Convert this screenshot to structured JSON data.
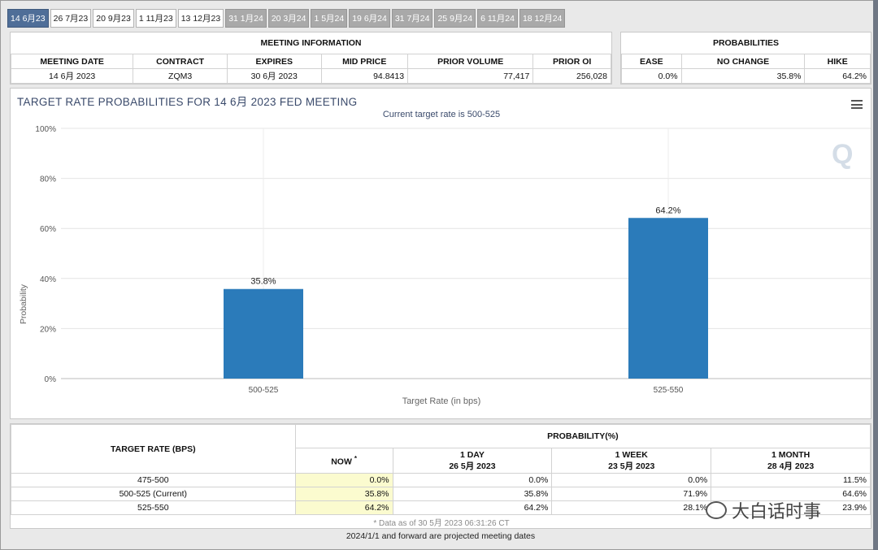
{
  "tabs": [
    {
      "label": "14 6月23",
      "state": "active"
    },
    {
      "label": "26 7月23",
      "state": "normal"
    },
    {
      "label": "20 9月23",
      "state": "normal"
    },
    {
      "label": "1 11月23",
      "state": "normal"
    },
    {
      "label": "13 12月23",
      "state": "normal"
    },
    {
      "label": "31 1月24",
      "state": "grey"
    },
    {
      "label": "20 3月24",
      "state": "grey"
    },
    {
      "label": "1 5月24",
      "state": "grey"
    },
    {
      "label": "19 6月24",
      "state": "grey"
    },
    {
      "label": "31 7月24",
      "state": "grey"
    },
    {
      "label": "25 9月24",
      "state": "grey"
    },
    {
      "label": "6 11月24",
      "state": "grey"
    },
    {
      "label": "18 12月24",
      "state": "grey"
    }
  ],
  "meeting": {
    "title": "MEETING INFORMATION",
    "headers": [
      "MEETING DATE",
      "CONTRACT",
      "EXPIRES",
      "MID PRICE",
      "PRIOR VOLUME",
      "PRIOR OI"
    ],
    "values": [
      "14 6月 2023",
      "ZQM3",
      "30 6月 2023",
      "94.8413",
      "77,417",
      "256,028"
    ]
  },
  "probabilities": {
    "title": "PROBABILITIES",
    "headers": [
      "EASE",
      "NO CHANGE",
      "HIKE"
    ],
    "values": [
      "0.0%",
      "35.8%",
      "64.2%"
    ]
  },
  "chart": {
    "title": "TARGET RATE PROBABILITIES FOR 14 6月 2023 FED MEETING",
    "subtitle": "Current target rate is 500-525",
    "menu_icon": "hamburger-menu-icon",
    "watermark_logo": "Q"
  },
  "chart_data": {
    "type": "bar",
    "title": "TARGET RATE PROBABILITIES FOR 14 6月 2023 FED MEETING",
    "subtitle": "Current target rate is 500-525",
    "categories": [
      "500-525",
      "525-550"
    ],
    "values": [
      35.8,
      64.2
    ],
    "data_labels": [
      "35.8%",
      "64.2%"
    ],
    "xlabel": "Target Rate (in bps)",
    "ylabel": "Probability",
    "ylim": [
      0,
      100
    ],
    "yticks": [
      "0%",
      "20%",
      "40%",
      "60%",
      "80%",
      "100%"
    ],
    "bar_color": "#2b7bba",
    "grid": true
  },
  "rates_table": {
    "row_header": "TARGET RATE (BPS)",
    "group_header": "PROBABILITY(%)",
    "columns": [
      {
        "label": "NOW",
        "sub": "",
        "mark": "*"
      },
      {
        "label": "1 DAY",
        "sub": "26 5月 2023",
        "mark": ""
      },
      {
        "label": "1 WEEK",
        "sub": "23 5月 2023",
        "mark": ""
      },
      {
        "label": "1 MONTH",
        "sub": "28 4月 2023",
        "mark": ""
      }
    ],
    "rows": [
      {
        "rate": "475-500",
        "values": [
          "0.0%",
          "0.0%",
          "0.0%",
          "11.5%"
        ]
      },
      {
        "rate": "500-525 (Current)",
        "values": [
          "35.8%",
          "35.8%",
          "71.9%",
          "64.6%"
        ]
      },
      {
        "rate": "525-550",
        "values": [
          "64.2%",
          "64.2%",
          "28.1%",
          "23.9%"
        ]
      }
    ],
    "note": "* Data as of 30 5月 2023 06:31:26 CT"
  },
  "footer": "2024/1/1 and forward are projected meeting dates",
  "watermark": "大白话时事",
  "colors": {
    "accent": "#4f6e98",
    "bar": "#2b7bba",
    "now_cell": "#fbfbcf"
  }
}
